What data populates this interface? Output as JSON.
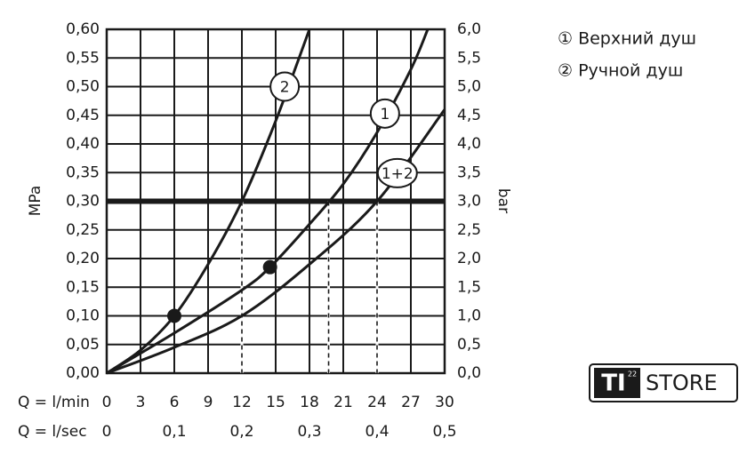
{
  "chart_data": {
    "type": "line",
    "xlabel": "Q = l/min",
    "x2label": "Q = l/sec",
    "ylabel": "MPa",
    "y2label": "bar",
    "xlim": [
      0,
      30
    ],
    "xticks": [
      0,
      3,
      6,
      9,
      12,
      15,
      18,
      21,
      24,
      27,
      30
    ],
    "x2lim": [
      0,
      0.5
    ],
    "x2ticks": [
      0,
      {
        "value": 0.1,
        "label": "0,1"
      },
      {
        "value": 0.2,
        "label": "0,2"
      },
      {
        "value": 0.3,
        "label": "0,3"
      },
      {
        "value": 0.4,
        "label": "0,4"
      },
      {
        "value": 0.5,
        "label": "0,5"
      }
    ],
    "ylim": [
      0,
      0.6
    ],
    "yticks": [
      {
        "value": 0,
        "label": "0,00"
      },
      {
        "value": 0.05,
        "label": "0,05"
      },
      {
        "value": 0.1,
        "label": "0,10"
      },
      {
        "value": 0.15,
        "label": "0,15"
      },
      {
        "value": 0.2,
        "label": "0,20"
      },
      {
        "value": 0.25,
        "label": "0,25"
      },
      {
        "value": 0.3,
        "label": "0,30"
      },
      {
        "value": 0.35,
        "label": "0,35"
      },
      {
        "value": 0.4,
        "label": "0,40"
      },
      {
        "value": 0.45,
        "label": "0,45"
      },
      {
        "value": 0.5,
        "label": "0,50"
      },
      {
        "value": 0.55,
        "label": "0,55"
      },
      {
        "value": 0.6,
        "label": "0,60"
      }
    ],
    "y2lim": [
      0,
      6
    ],
    "y2ticks": [
      {
        "value": 0,
        "label": "0,0"
      },
      {
        "value": 0.5,
        "label": "0,5"
      },
      {
        "value": 1,
        "label": "1,0"
      },
      {
        "value": 1.5,
        "label": "1,5"
      },
      {
        "value": 2,
        "label": "2,0"
      },
      {
        "value": 2.5,
        "label": "2,5"
      },
      {
        "value": 3,
        "label": "3,0"
      },
      {
        "value": 3.5,
        "label": "3,5"
      },
      {
        "value": 4,
        "label": "4,0"
      },
      {
        "value": 4.5,
        "label": "4,5"
      },
      {
        "value": 5,
        "label": "5,0"
      },
      {
        "value": 5.5,
        "label": "5,5"
      },
      {
        "value": 6,
        "label": "6,0"
      }
    ],
    "grid": true,
    "color": "#1a1a1a",
    "series": [
      {
        "name": "2",
        "x": [
          0,
          3,
          6,
          9,
          12,
          15,
          18
        ],
        "values": [
          0,
          0.04,
          0.1,
          0.19,
          0.3,
          0.44,
          0.6
        ]
      },
      {
        "name": "1",
        "x": [
          0,
          6,
          12,
          14.5,
          18,
          21,
          24,
          27,
          28.5
        ],
        "values": [
          0,
          0.07,
          0.145,
          0.185,
          0.26,
          0.33,
          0.42,
          0.53,
          0.6
        ]
      },
      {
        "name": "1+2",
        "x": [
          0,
          6,
          12,
          18,
          24,
          30
        ],
        "values": [
          0,
          0.045,
          0.1,
          0.19,
          0.3,
          0.46
        ]
      }
    ],
    "points": {
      "x": [
        6,
        14.5
      ],
      "values": [
        0.1,
        0.185
      ]
    },
    "reference_y": 0.3,
    "reference_x": [
      12,
      19.7,
      24
    ],
    "legend": [
      "① Верхний душ",
      "② Ручной душ"
    ]
  },
  "logo": {
    "mark": "TI",
    "superscript": "22",
    "text": "STORE"
  }
}
